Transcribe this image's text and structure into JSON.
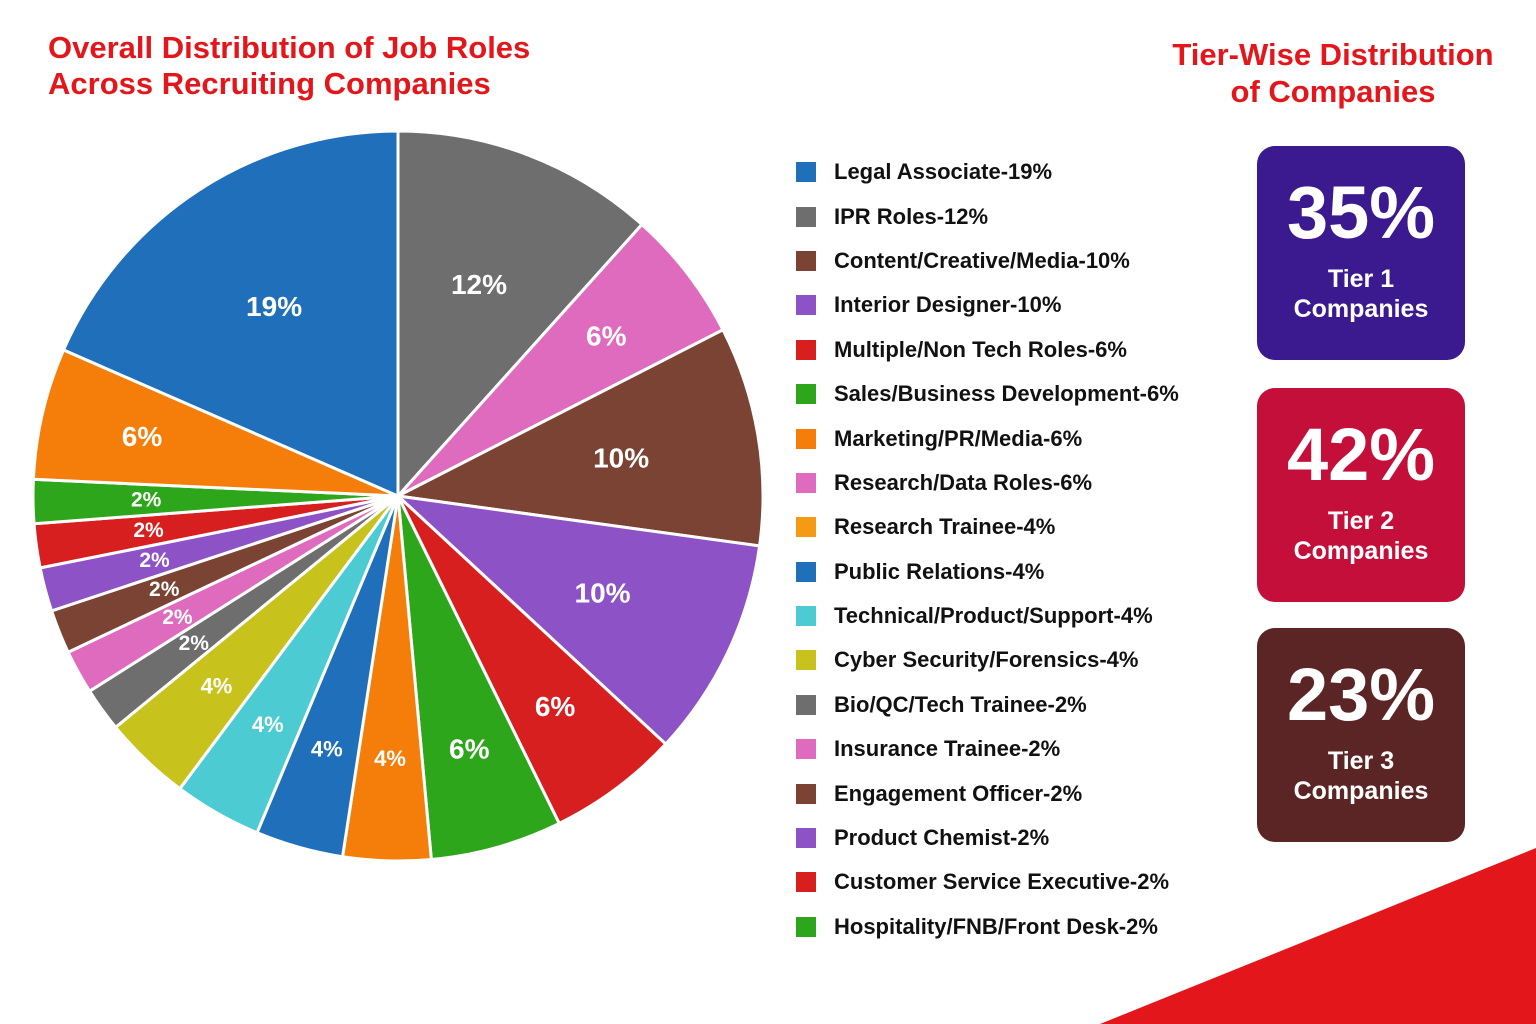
{
  "titles": {
    "left_line1": "Overall Distribution of Job Roles",
    "left_line2": "Across Recruiting Companies",
    "right_line1": "Tier-Wise Distribution",
    "right_line2": "of Companies"
  },
  "chart_data": {
    "type": "pie",
    "title": "Overall Distribution of Job Roles Across Recruiting Companies",
    "legend_position": "right",
    "slices_clockwise_from_top": [
      {
        "label": "12%",
        "value": 12,
        "color": "#6e6e6e"
      },
      {
        "label": "6%",
        "value": 6,
        "color": "#de6bbd"
      },
      {
        "label": "10%",
        "value": 10,
        "color": "#7b4333"
      },
      {
        "label": "10%",
        "value": 10,
        "color": "#8c52c6"
      },
      {
        "label": "6%",
        "value": 6,
        "color": "#d81f1f"
      },
      {
        "label": "6%",
        "value": 6,
        "color": "#2ea61c"
      },
      {
        "label": "4%",
        "value": 4,
        "color": "#f57d0a"
      },
      {
        "label": "4%",
        "value": 4,
        "color": "#1f6fba"
      },
      {
        "label": "4%",
        "value": 4,
        "color": "#4ccbd3"
      },
      {
        "label": "4%",
        "value": 4,
        "color": "#c8c21d"
      },
      {
        "label": "2%",
        "value": 2,
        "color": "#6e6e6e"
      },
      {
        "label": "2%",
        "value": 2,
        "color": "#de6bbd"
      },
      {
        "label": "2%",
        "value": 2,
        "color": "#7b4333"
      },
      {
        "label": "2%",
        "value": 2,
        "color": "#8c52c6"
      },
      {
        "label": "2%",
        "value": 2,
        "color": "#d81f1f"
      },
      {
        "label": "2%",
        "value": 2,
        "color": "#2ea61c"
      },
      {
        "label": "6%",
        "value": 6,
        "color": "#f57d0a"
      },
      {
        "label": "19%",
        "value": 19,
        "color": "#1f6fba"
      }
    ],
    "legend": [
      {
        "label": "Legal Associate-19%",
        "color": "#1f6fba"
      },
      {
        "label": "IPR Roles-12%",
        "color": "#6e6e6e"
      },
      {
        "label": "Content/Creative/Media-10%",
        "color": "#7b4333"
      },
      {
        "label": "Interior Designer-10%",
        "color": "#8c52c6"
      },
      {
        "label": "Multiple/Non Tech Roles-6%",
        "color": "#d81f1f"
      },
      {
        "label": "Sales/Business Development-6%",
        "color": "#2ea61c"
      },
      {
        "label": "Marketing/PR/Media-6%",
        "color": "#f57d0a"
      },
      {
        "label": "Research/Data Roles-6%",
        "color": "#de6bbd"
      },
      {
        "label": "Research Trainee-4%",
        "color": "#f59a14"
      },
      {
        "label": "Public Relations-4%",
        "color": "#1f6fba"
      },
      {
        "label": "Technical/Product/Support-4%",
        "color": "#4ccbd3"
      },
      {
        "label": "Cyber Security/Forensics-4%",
        "color": "#c8c21d"
      },
      {
        "label": "Bio/QC/Tech Trainee-2%",
        "color": "#6e6e6e"
      },
      {
        "label": "Insurance Trainee-2%",
        "color": "#de6bbd"
      },
      {
        "label": "Engagement Officer-2%",
        "color": "#7b4333"
      },
      {
        "label": "Product Chemist-2%",
        "color": "#8c52c6"
      },
      {
        "label": "Customer Service Executive-2%",
        "color": "#d81f1f"
      },
      {
        "label": "Hospitality/FNB/Front Desk-2%",
        "color": "#2ea61c"
      }
    ]
  },
  "tiers": [
    {
      "pct": "35%",
      "line1": "Tier 1",
      "line2": "Companies",
      "color": "#3a1a8e"
    },
    {
      "pct": "42%",
      "line1": "Tier 2",
      "line2": "Companies",
      "color": "#c30f3a"
    },
    {
      "pct": "23%",
      "line1": "Tier 3",
      "line2": "Companies",
      "color": "#5c2525"
    }
  ],
  "accent_color": "#e3161b"
}
